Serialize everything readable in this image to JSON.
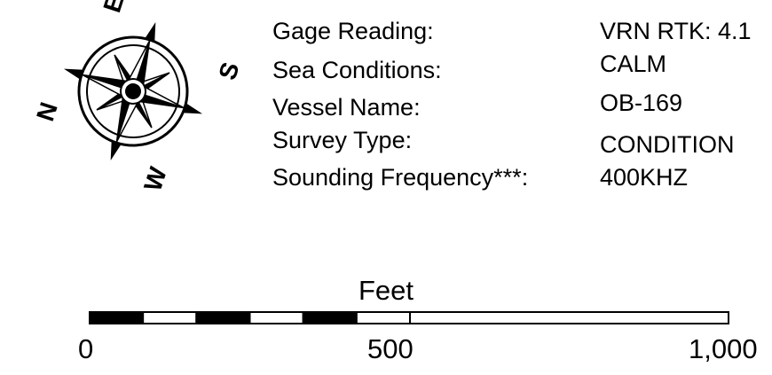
{
  "compass": {
    "north_label": "N",
    "east_label": "E",
    "south_label": "S",
    "west_label": "W"
  },
  "survey_info": {
    "rows": [
      {
        "label": "Gage Reading:",
        "value": "VRN RTK: 4.1"
      },
      {
        "label": "Sea Conditions:",
        "value": "CALM"
      },
      {
        "label": "Vessel Name:",
        "value": "OB-169"
      },
      {
        "label": "Survey Type:",
        "value": "CONDITION"
      },
      {
        "label": "Sounding Frequency***:",
        "value": "400KHZ"
      }
    ]
  },
  "scale_bar": {
    "title": "Feet",
    "units": "Feet",
    "tick_labels": [
      "0",
      "500",
      "1,000"
    ],
    "divisions": 6
  },
  "colors": {
    "ink": "#000000",
    "paper": "#ffffff"
  }
}
